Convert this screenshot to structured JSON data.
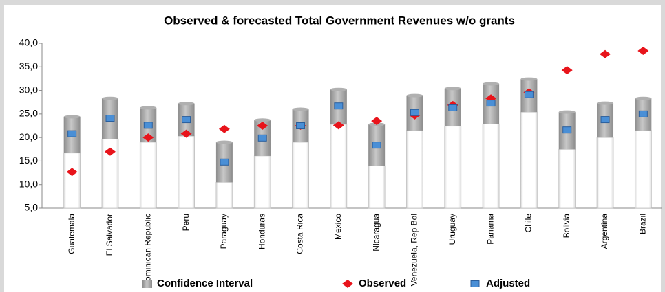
{
  "chart_data": {
    "type": "range-bar",
    "title": "Observed & forecasted Total Government Revenues w/o grants",
    "categories": [
      "Guatemala",
      "El Salvador",
      "Dominican Republic",
      "Peru",
      "Paraguay",
      "Honduras",
      "Costa Rica",
      "Mexico",
      "Nicaragua",
      "Venezuela, Rep Bol",
      "Uruguay",
      "Panama",
      "Chile",
      "Bolivia",
      "Argentina",
      "Brazil"
    ],
    "interval": {
      "name": "Confidence Interval",
      "color": "#a6a6a6",
      "low": [
        16.7,
        19.7,
        19.0,
        20.3,
        10.5,
        16.1,
        19.0,
        22.8,
        14.0,
        21.5,
        22.4,
        22.9,
        25.4,
        17.5,
        20.0,
        21.5
      ],
      "high": [
        24.4,
        28.3,
        26.3,
        27.2,
        19.0,
        23.7,
        26.0,
        30.2,
        22.8,
        28.9,
        30.4,
        31.4,
        32.4,
        25.4,
        27.3,
        28.3
      ]
    },
    "series": [
      {
        "name": "Observed",
        "color": "#e8141b",
        "marker": "diamond",
        "values": [
          12.7,
          17.0,
          20.0,
          20.8,
          21.8,
          22.5,
          22.5,
          22.6,
          23.5,
          24.7,
          26.9,
          28.3,
          29.6,
          34.3,
          37.7,
          38.4
        ]
      },
      {
        "name": "Adjusted",
        "color": "#4a8fd6",
        "marker": "square",
        "values": [
          20.8,
          24.1,
          22.6,
          23.8,
          14.8,
          19.9,
          22.5,
          26.7,
          18.4,
          25.3,
          26.3,
          27.3,
          29.1,
          21.6,
          23.8,
          25.0
        ]
      }
    ],
    "ylim": [
      5,
      40
    ],
    "yticks": [
      {
        "value": 5,
        "label": "5,0"
      },
      {
        "value": 10,
        "label": "10,0"
      },
      {
        "value": 15,
        "label": "15,0"
      },
      {
        "value": 20,
        "label": "20,0"
      },
      {
        "value": 25,
        "label": "25,0"
      },
      {
        "value": 30,
        "label": "30,0"
      },
      {
        "value": 35,
        "label": "35,0"
      },
      {
        "value": 40,
        "label": "40,0"
      }
    ],
    "grid": false
  }
}
